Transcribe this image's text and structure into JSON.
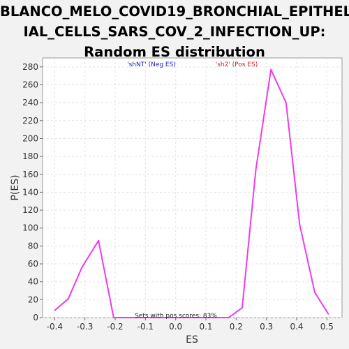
{
  "chart_data": {
    "type": "line",
    "title_lines": [
      "BLANCO_MELO_COVID19_BRONCHIAL_EPITHEL",
      "IAL_CELLS_SARS_COV_2_INFECTION_UP:",
      "Random ES distribution"
    ],
    "xlabel": "ES",
    "ylabel": "P(ES)",
    "xlim": [
      -0.44,
      0.55
    ],
    "ylim": [
      0,
      290
    ],
    "xticks": [
      -0.4,
      -0.3,
      -0.2,
      -0.1,
      0.0,
      0.1,
      0.2,
      0.3,
      0.4,
      0.5
    ],
    "xtick_labels": [
      "-0.4",
      "-0.3",
      "-0.2",
      "-0.1",
      "0.0",
      "0.1",
      "0.2",
      "0.3",
      "0.4",
      "0.5"
    ],
    "yticks": [
      0,
      20,
      40,
      60,
      80,
      100,
      120,
      140,
      160,
      180,
      200,
      220,
      240,
      260,
      280
    ],
    "grid": true,
    "series": [
      {
        "color": "#ee3aee",
        "x": [
          -0.4,
          -0.355,
          -0.31,
          -0.255,
          -0.205,
          -0.16,
          -0.11,
          -0.06,
          -0.01,
          0.04,
          0.085,
          0.135,
          0.175,
          0.22,
          0.265,
          0.315,
          0.365,
          0.41,
          0.46,
          0.505
        ],
        "y": [
          8,
          21,
          56,
          86,
          0,
          0,
          0,
          0,
          0,
          0,
          0,
          0,
          0,
          11,
          165,
          277,
          240,
          104,
          28,
          4
        ]
      }
    ],
    "annotations": {
      "neg_label": "'shNT' (Neg ES)",
      "pos_label": "'sh2' (Pos ES)",
      "neg_color": "#2020c0",
      "pos_color": "#d02020",
      "footer": "Sets with pos scores: 83%"
    }
  }
}
